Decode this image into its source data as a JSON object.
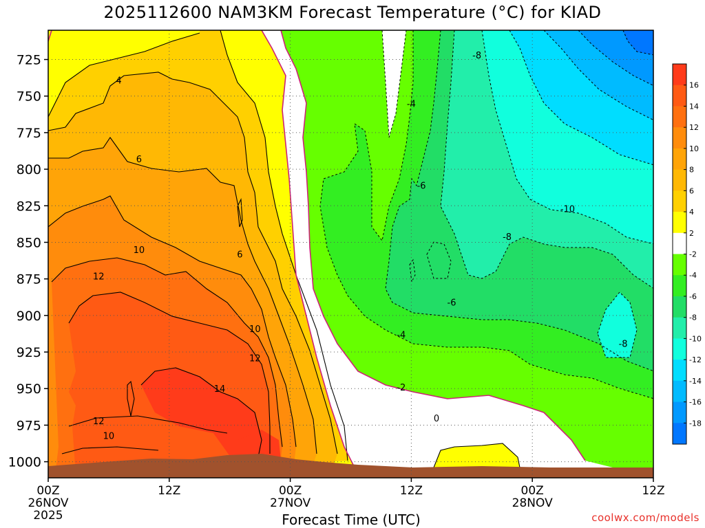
{
  "title": "2025112600 NAM3KM Forecast Temperature (°C) for KIAD",
  "credit": "coolwx.com/models",
  "chart_data": {
    "type": "heatmap",
    "title": "2025112600 NAM3KM Forecast Temperature (°C) for KIAD",
    "xlabel": "Forecast Time (UTC)",
    "ylabel": "",
    "x_hours": [
      0,
      12,
      24,
      36,
      48,
      60
    ],
    "x_ticks": [
      {
        "h": 0,
        "lines": [
          "00Z",
          "26NOV",
          "2025"
        ]
      },
      {
        "h": 12,
        "lines": [
          "12Z"
        ]
      },
      {
        "h": 24,
        "lines": [
          "00Z",
          "27NOV"
        ]
      },
      {
        "h": 36,
        "lines": [
          "12Z"
        ]
      },
      {
        "h": 48,
        "lines": [
          "00Z",
          "28NOV"
        ]
      },
      {
        "h": 60,
        "lines": [
          "12Z"
        ]
      }
    ],
    "xlim": [
      0,
      60
    ],
    "y_ticks": [
      725,
      750,
      775,
      800,
      825,
      850,
      875,
      900,
      925,
      950,
      975,
      1000
    ],
    "ylim": [
      705,
      1011
    ],
    "y_units": "hPa",
    "grid": true,
    "colorbar": {
      "labels": [
        16,
        14,
        12,
        10,
        8,
        6,
        4,
        2,
        -2,
        -4,
        -6,
        -8,
        -10,
        -12,
        -14,
        -16,
        -18
      ],
      "colors": [
        "#ff3b1a",
        "#ff5a14",
        "#ff7010",
        "#ff8c0c",
        "#ffa408",
        "#ffb804",
        "#ffd000",
        "#ffff00",
        "#ffffff",
        "#66ff00",
        "#33ee22",
        "#22dd66",
        "#22eeaa",
        "#11ffdd",
        "#00ddff",
        "#00bbff",
        "#0099ff",
        "#0077ff"
      ]
    },
    "band_colors": {
      "b-18": "#0077ff",
      "b-16": "#0099ff",
      "b-14": "#00bbff",
      "b-12": "#00ddff",
      "b-10": "#11ffdd",
      "b-8": "#22eeaa",
      "b-6": "#22dd66",
      "b-4": "#33ee22",
      "b-2": "#66ff00",
      "b0": "#ffffff",
      "b2": "#ffff00",
      "b4": "#ffd000",
      "b6": "#ffb804",
      "b8": "#ffa408",
      "b10": "#ff8c0c",
      "b12": "#ff7010",
      "b14": "#ff5a14",
      "b16": "#ff3b1a",
      "terrain": "#a0522d",
      "zero_line": "#cc2277"
    },
    "contour_labels": [
      {
        "text": "-8",
        "h": 42.5,
        "p": 722
      },
      {
        "text": "-4",
        "h": 36.0,
        "p": 755
      },
      {
        "text": "-6",
        "h": 37.0,
        "p": 811
      },
      {
        "text": "-10",
        "h": 51.5,
        "p": 827
      },
      {
        "text": "-8",
        "h": 45.5,
        "p": 846
      },
      {
        "text": "-6",
        "h": 40.0,
        "p": 891
      },
      {
        "text": "-4",
        "h": 35.0,
        "p": 913
      },
      {
        "text": "-2",
        "h": 35.0,
        "p": 949
      },
      {
        "text": "0",
        "h": 38.5,
        "p": 970
      },
      {
        "text": "-8",
        "h": 57.0,
        "p": 919
      },
      {
        "text": "4",
        "h": 7.0,
        "p": 739
      },
      {
        "text": "6",
        "h": 9.0,
        "p": 793
      },
      {
        "text": "10",
        "h": 9.0,
        "p": 855
      },
      {
        "text": "6",
        "h": 19.0,
        "p": 858
      },
      {
        "text": "12",
        "h": 5.0,
        "p": 873
      },
      {
        "text": "10",
        "h": 20.5,
        "p": 909
      },
      {
        "text": "12",
        "h": 20.5,
        "p": 929
      },
      {
        "text": "14",
        "h": 17.0,
        "p": 950
      },
      {
        "text": "12",
        "h": 5.0,
        "p": 972
      },
      {
        "text": "10",
        "h": 6.0,
        "p": 982
      }
    ]
  }
}
